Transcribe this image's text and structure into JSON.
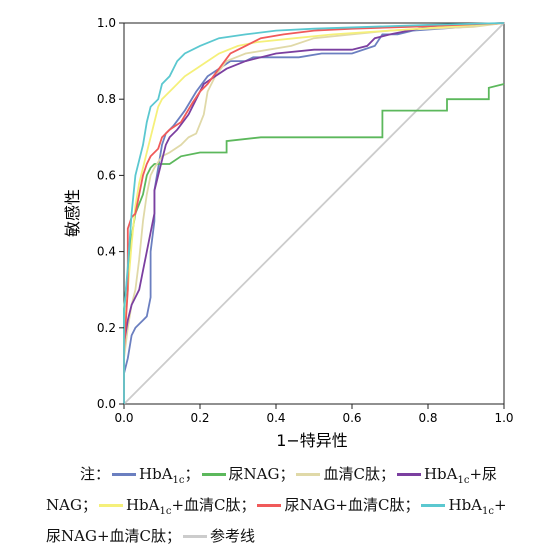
{
  "chart_data": {
    "type": "line",
    "xlabel": "1−特异性",
    "ylabel": "敏感性",
    "xlim": [
      0,
      1
    ],
    "ylim": [
      0,
      1
    ],
    "x_ticks": [
      "0.0",
      "0.2",
      "0.4",
      "0.6",
      "0.8",
      "1.0"
    ],
    "y_ticks": [
      "0.0",
      "0.2",
      "0.4",
      "0.6",
      "0.8",
      "1.0"
    ],
    "grid": false,
    "legend_position": "bottom",
    "series": [
      {
        "name": "HbA1c",
        "color": "#6b7fc0",
        "points": [
          [
            0,
            0
          ],
          [
            0,
            0.08
          ],
          [
            0.01,
            0.12
          ],
          [
            0.02,
            0.18
          ],
          [
            0.03,
            0.2
          ],
          [
            0.05,
            0.22
          ],
          [
            0.06,
            0.23
          ],
          [
            0.07,
            0.28
          ],
          [
            0.07,
            0.4
          ],
          [
            0.08,
            0.48
          ],
          [
            0.08,
            0.56
          ],
          [
            0.09,
            0.62
          ],
          [
            0.1,
            0.68
          ],
          [
            0.11,
            0.71
          ],
          [
            0.13,
            0.73
          ],
          [
            0.16,
            0.77
          ],
          [
            0.19,
            0.82
          ],
          [
            0.22,
            0.86
          ],
          [
            0.25,
            0.88
          ],
          [
            0.28,
            0.9
          ],
          [
            0.32,
            0.9
          ],
          [
            0.34,
            0.91
          ],
          [
            0.4,
            0.91
          ],
          [
            0.46,
            0.91
          ],
          [
            0.52,
            0.92
          ],
          [
            0.6,
            0.92
          ],
          [
            0.66,
            0.94
          ],
          [
            0.68,
            0.97
          ],
          [
            0.72,
            0.97
          ],
          [
            0.76,
            0.98
          ],
          [
            0.9,
            0.99
          ],
          [
            1,
            1
          ]
        ]
      },
      {
        "name": "尿NAG",
        "color": "#5cb85c",
        "points": [
          [
            0,
            0
          ],
          [
            0,
            0.25
          ],
          [
            0.02,
            0.44
          ],
          [
            0.03,
            0.5
          ],
          [
            0.05,
            0.55
          ],
          [
            0.06,
            0.6
          ],
          [
            0.07,
            0.62
          ],
          [
            0.08,
            0.63
          ],
          [
            0.12,
            0.63
          ],
          [
            0.15,
            0.65
          ],
          [
            0.2,
            0.66
          ],
          [
            0.27,
            0.66
          ],
          [
            0.27,
            0.69
          ],
          [
            0.36,
            0.7
          ],
          [
            0.6,
            0.7
          ],
          [
            0.68,
            0.7
          ],
          [
            0.68,
            0.77
          ],
          [
            0.85,
            0.77
          ],
          [
            0.85,
            0.8
          ],
          [
            0.96,
            0.8
          ],
          [
            0.96,
            0.83
          ],
          [
            1,
            0.84
          ]
        ]
      },
      {
        "name": "血清C肽",
        "color": "#e0d9a8",
        "points": [
          [
            0,
            0
          ],
          [
            0,
            0.12
          ],
          [
            0.01,
            0.2
          ],
          [
            0.02,
            0.26
          ],
          [
            0.03,
            0.3
          ],
          [
            0.04,
            0.38
          ],
          [
            0.05,
            0.48
          ],
          [
            0.06,
            0.55
          ],
          [
            0.07,
            0.6
          ],
          [
            0.08,
            0.62
          ],
          [
            0.1,
            0.65
          ],
          [
            0.12,
            0.66
          ],
          [
            0.15,
            0.68
          ],
          [
            0.17,
            0.7
          ],
          [
            0.19,
            0.71
          ],
          [
            0.21,
            0.76
          ],
          [
            0.22,
            0.82
          ],
          [
            0.24,
            0.86
          ],
          [
            0.27,
            0.9
          ],
          [
            0.32,
            0.92
          ],
          [
            0.38,
            0.93
          ],
          [
            0.44,
            0.94
          ],
          [
            0.5,
            0.96
          ],
          [
            0.6,
            0.97
          ],
          [
            0.7,
            0.98
          ],
          [
            0.8,
            0.985
          ],
          [
            0.92,
            0.99
          ],
          [
            1,
            1
          ]
        ]
      },
      {
        "name": "HbA1c+尿NAG",
        "color": "#7b3fa0",
        "points": [
          [
            0,
            0
          ],
          [
            0,
            0.16
          ],
          [
            0.01,
            0.22
          ],
          [
            0.02,
            0.26
          ],
          [
            0.04,
            0.3
          ],
          [
            0.05,
            0.35
          ],
          [
            0.06,
            0.4
          ],
          [
            0.07,
            0.45
          ],
          [
            0.08,
            0.5
          ],
          [
            0.08,
            0.56
          ],
          [
            0.09,
            0.6
          ],
          [
            0.1,
            0.64
          ],
          [
            0.11,
            0.68
          ],
          [
            0.12,
            0.7
          ],
          [
            0.14,
            0.72
          ],
          [
            0.17,
            0.76
          ],
          [
            0.19,
            0.8
          ],
          [
            0.21,
            0.84
          ],
          [
            0.24,
            0.86
          ],
          [
            0.27,
            0.88
          ],
          [
            0.32,
            0.9
          ],
          [
            0.4,
            0.92
          ],
          [
            0.5,
            0.93
          ],
          [
            0.6,
            0.93
          ],
          [
            0.64,
            0.94
          ],
          [
            0.66,
            0.96
          ],
          [
            0.7,
            0.97
          ],
          [
            0.8,
            0.99
          ],
          [
            1,
            1
          ]
        ]
      },
      {
        "name": "HbA1c+血清C肽",
        "color": "#f5f07a",
        "points": [
          [
            0,
            0
          ],
          [
            0,
            0.18
          ],
          [
            0.01,
            0.3
          ],
          [
            0.02,
            0.42
          ],
          [
            0.03,
            0.52
          ],
          [
            0.04,
            0.58
          ],
          [
            0.05,
            0.62
          ],
          [
            0.06,
            0.66
          ],
          [
            0.07,
            0.7
          ],
          [
            0.08,
            0.74
          ],
          [
            0.09,
            0.78
          ],
          [
            0.1,
            0.8
          ],
          [
            0.12,
            0.82
          ],
          [
            0.14,
            0.84
          ],
          [
            0.16,
            0.86
          ],
          [
            0.19,
            0.88
          ],
          [
            0.22,
            0.9
          ],
          [
            0.25,
            0.92
          ],
          [
            0.3,
            0.94
          ],
          [
            0.35,
            0.95
          ],
          [
            0.45,
            0.96
          ],
          [
            0.55,
            0.97
          ],
          [
            0.7,
            0.98
          ],
          [
            0.85,
            0.99
          ],
          [
            1,
            1
          ]
        ]
      },
      {
        "name": "尿NAG+血清C肽",
        "color": "#f05a5a",
        "points": [
          [
            0,
            0
          ],
          [
            0,
            0.14
          ],
          [
            0.01,
            0.3
          ],
          [
            0.01,
            0.46
          ],
          [
            0.02,
            0.49
          ],
          [
            0.03,
            0.5
          ],
          [
            0.04,
            0.55
          ],
          [
            0.05,
            0.6
          ],
          [
            0.06,
            0.63
          ],
          [
            0.07,
            0.65
          ],
          [
            0.09,
            0.67
          ],
          [
            0.1,
            0.7
          ],
          [
            0.12,
            0.72
          ],
          [
            0.15,
            0.74
          ],
          [
            0.18,
            0.79
          ],
          [
            0.2,
            0.82
          ],
          [
            0.22,
            0.84
          ],
          [
            0.25,
            0.88
          ],
          [
            0.28,
            0.92
          ],
          [
            0.32,
            0.94
          ],
          [
            0.36,
            0.96
          ],
          [
            0.42,
            0.97
          ],
          [
            0.5,
            0.98
          ],
          [
            0.6,
            0.985
          ],
          [
            0.75,
            0.99
          ],
          [
            1,
            1
          ]
        ]
      },
      {
        "name": "HbA1c+尿NAG+血清C肽",
        "color": "#5bc8d0",
        "points": [
          [
            0,
            0
          ],
          [
            0,
            0.24
          ],
          [
            0.01,
            0.36
          ],
          [
            0.02,
            0.5
          ],
          [
            0.03,
            0.6
          ],
          [
            0.04,
            0.64
          ],
          [
            0.05,
            0.68
          ],
          [
            0.06,
            0.74
          ],
          [
            0.07,
            0.78
          ],
          [
            0.09,
            0.8
          ],
          [
            0.1,
            0.84
          ],
          [
            0.12,
            0.86
          ],
          [
            0.14,
            0.9
          ],
          [
            0.16,
            0.92
          ],
          [
            0.2,
            0.94
          ],
          [
            0.25,
            0.96
          ],
          [
            0.32,
            0.97
          ],
          [
            0.4,
            0.98
          ],
          [
            0.5,
            0.985
          ],
          [
            0.65,
            0.99
          ],
          [
            0.8,
            0.995
          ],
          [
            1,
            1
          ]
        ]
      },
      {
        "name": "参考线",
        "color": "#cccccc",
        "points": [
          [
            0,
            0
          ],
          [
            1,
            1
          ]
        ]
      }
    ]
  },
  "legend": {
    "prefix": "注：",
    "items": [
      {
        "pre": "HbA",
        "sub": "1c",
        "post": "；",
        "color": "#6b7fc0"
      },
      {
        "pre": "尿NAG；",
        "color": "#5cb85c"
      },
      {
        "pre": "血清C肽；",
        "color": "#e0d9a8"
      },
      {
        "pre": "HbA",
        "sub": "1c",
        "post": "+尿",
        "color": "#7b3fa0"
      },
      {
        "text": "NAG；"
      },
      {
        "pre": "HbA",
        "sub": "1c",
        "post": "+血清C肽；",
        "color": "#f5f07a"
      },
      {
        "pre": "尿NAG+血清C肽；",
        "color": "#f05a5a"
      },
      {
        "pre": "HbA",
        "sub": "1c",
        "post": "+",
        "color": "#5bc8d0"
      },
      {
        "text": "尿NAG+血清C肽；"
      },
      {
        "pre": "参考线",
        "color": "#cccccc"
      }
    ]
  }
}
